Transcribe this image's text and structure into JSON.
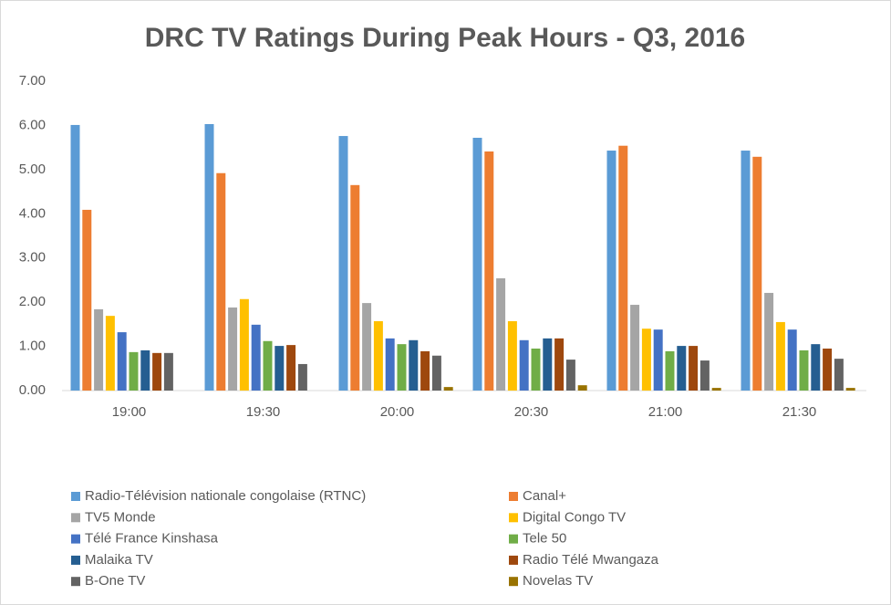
{
  "chart_data": {
    "type": "bar",
    "title": "DRC TV Ratings During Peak Hours - Q3, 2016",
    "categories": [
      "19:00",
      "19:30",
      "20:00",
      "20:30",
      "21:00",
      "21:30"
    ],
    "series": [
      {
        "name": "Radio-Télévision nationale congolaise (RTNC)",
        "color": "#5b9bd5",
        "values": [
          6.01,
          6.03,
          5.76,
          5.72,
          5.43,
          5.43
        ]
      },
      {
        "name": "Canal+",
        "color": "#ed7d31",
        "values": [
          4.09,
          4.92,
          4.65,
          5.41,
          5.54,
          5.29
        ]
      },
      {
        "name": "TV5 Monde",
        "color": "#a5a5a5",
        "values": [
          1.84,
          1.88,
          1.98,
          2.54,
          1.94,
          2.21
        ]
      },
      {
        "name": "Digital Congo TV",
        "color": "#ffc000",
        "values": [
          1.69,
          2.07,
          1.57,
          1.57,
          1.4,
          1.55
        ]
      },
      {
        "name": "Télé France Kinshasa",
        "color": "#4472c4",
        "values": [
          1.32,
          1.49,
          1.18,
          1.14,
          1.38,
          1.38
        ]
      },
      {
        "name": "Tele 50",
        "color": "#70ad47",
        "values": [
          0.87,
          1.12,
          1.05,
          0.95,
          0.89,
          0.91
        ]
      },
      {
        "name": "Malaika TV",
        "color": "#255e91",
        "values": [
          0.91,
          1.01,
          1.14,
          1.18,
          1.01,
          1.05
        ]
      },
      {
        "name": "Radio Télé Mwangaza",
        "color": "#9e480e",
        "values": [
          0.85,
          1.03,
          0.89,
          1.18,
          1.01,
          0.95
        ]
      },
      {
        "name": "B-One TV",
        "color": "#636363",
        "values": [
          0.85,
          0.6,
          0.79,
          0.7,
          0.68,
          0.72
        ]
      },
      {
        "name": "Novelas TV",
        "color": "#997300",
        "values": [
          0,
          0,
          0.08,
          0.12,
          0.06,
          0.06
        ]
      }
    ],
    "ylim": [
      0,
      7
    ],
    "yticks": [
      {
        "value": 0,
        "label": "0.00"
      },
      {
        "value": 1,
        "label": "1.00"
      },
      {
        "value": 2,
        "label": "2.00"
      },
      {
        "value": 3,
        "label": "3.00"
      },
      {
        "value": 4,
        "label": "4.00"
      },
      {
        "value": 5,
        "label": "5.00"
      },
      {
        "value": 6,
        "label": "6.00"
      },
      {
        "value": 7,
        "label": "7.00"
      }
    ],
    "grid": false,
    "legend": "bottom"
  }
}
